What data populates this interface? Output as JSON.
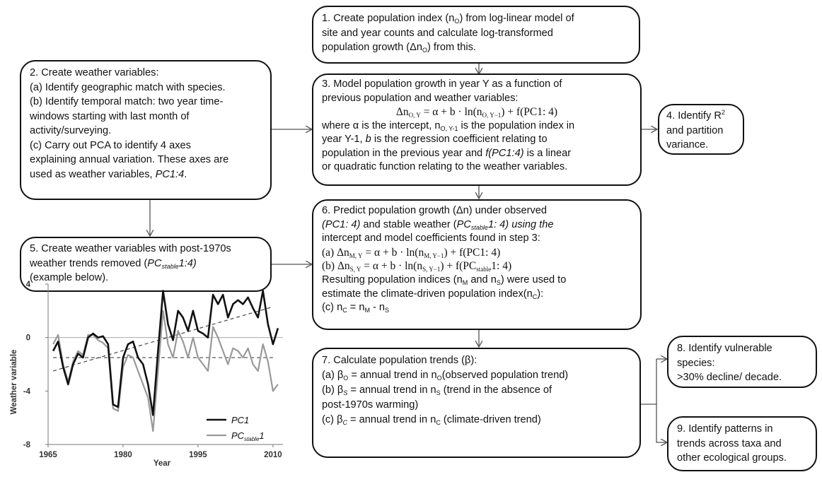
{
  "boxes": {
    "b1": {
      "lines": [
        "1. Create population index (n",
        "O",
        ") from log-linear model of",
        "site and year counts and calculate log-transformed",
        "population growth (Δn",
        "O",
        ") from this."
      ]
    },
    "b2": {
      "lines": [
        "2. Create weather variables:",
        "(a) Identify geographic match with species.",
        "(b) Identify temporal match: two year time-",
        "windows starting with last month of",
        "activity/surveying.",
        "(c) Carry out PCA to identify 4 axes",
        "explaining annual variation. These axes are",
        "used as weather variables, ",
        "PC1:4",
        "."
      ]
    },
    "b3": {
      "line1": "3. Model population growth in year Y as a function of",
      "line2": "previous population and weather variables:",
      "eq": "Δn",
      "eq_sub": "O, Y",
      "eq_mid": " = α + b · ln(n",
      "eq_sub2": "O, Y−1",
      "eq_end": ") + f(PC1: 4)",
      "line3a": "where α is the intercept, n",
      "line3sub": "O, Y-1",
      "line3b": " is the  population index in",
      "line4a": "year Y-1, ",
      "line4b": "b",
      "line4c": " is the  regression coefficient relating to",
      "line5a": "population in the previous year and ",
      "line5b": "f(PC1:4)",
      "line5c": " is a linear",
      "line6": "or quadratic function relating to the weather variables."
    },
    "b4": {
      "line1": "4. Identify R",
      "sup": "2",
      "line2": "and partition",
      "line3": "variance."
    },
    "b5": {
      "line1": "5. Create weather variables with post-1970s",
      "line2a": "weather trends removed (",
      "line2b": "PC",
      "line2sub": "stable",
      "line2c": "1:4)",
      "line3": "(example below)."
    },
    "b6": {
      "line1": "6. Predict population growth (Δn) under observed",
      "line2a": "(PC1: 4)",
      "line2b": " and stable weather (",
      "line2c": "PC",
      "line2sub": "stable",
      "line2d": "1: 4) using the",
      "line3": "intercept and model coefficients found in step 3:",
      "eqa_pre": "(a)  Δn",
      "eqa_sub": "M, Y",
      "eqa_mid": " =  α + b · ln(n",
      "eqa_sub2": "M, Y−1",
      "eqa_end": ") + f(PC1: 4)",
      "eqb_pre": "(b)  Δn",
      "eqb_sub": "S, Y",
      "eqb_mid": " =  α + b · ln(n",
      "eqb_sub2": "S, Y−1",
      "eqb_end1": ") + f(PC",
      "eqb_end_sub": "stable",
      "eqb_end2": "1: 4)",
      "line4a": "Resulting population indices (n",
      "line4sub1": "M",
      "line4b": " and n",
      "line4sub2": "S",
      "line4c": ") were used to",
      "line5": "estimate the climate-driven population index(n",
      "line5sub": "C",
      "line5end": "):",
      "line6a": "(c)  n",
      "line6sub1": "C",
      "line6b": " = n",
      "line6sub2": "M",
      "line6c": " - n",
      "line6sub3": "S"
    },
    "b7": {
      "line1": "7. Calculate population trends (β):",
      "l2a": "(a) β",
      "l2sub": "O",
      "l2b": " = annual trend in n",
      "l2sub2": "O",
      "l2c": "(observed population trend)",
      "l3a": "(b) β",
      "l3sub": "S",
      "l3b": " = annual trend in n",
      "l3sub2": "S",
      "l3c": " (trend in the absence of",
      "l4": "post-1970s warming)",
      "l5a": "(c) β",
      "l5sub": "C",
      "l5b": " = annual trend in n",
      "l5sub2": "C",
      "l5c": "  (climate-driven trend)"
    },
    "b8": {
      "line1": "8. Identify vulnerable",
      "line2": "species:",
      "line3": ">30% decline/ decade."
    },
    "b9": {
      "line1": "9. Identify patterns in",
      "line2": "trends across taxa and",
      "line3": "other ecological groups."
    }
  },
  "chart_data": {
    "type": "line",
    "xlabel": "Year",
    "ylabel": "Weather variable",
    "xlim": [
      1965,
      2012
    ],
    "ylim": [
      -8,
      4
    ],
    "xticks": [
      1965,
      1980,
      1995,
      2010
    ],
    "yticks": [
      4,
      0,
      -4,
      -8
    ],
    "x": [
      1966,
      1967,
      1968,
      1969,
      1970,
      1971,
      1972,
      1973,
      1974,
      1975,
      1976,
      1977,
      1978,
      1979,
      1980,
      1981,
      1982,
      1983,
      1984,
      1985,
      1986,
      1987,
      1988,
      1989,
      1990,
      1991,
      1992,
      1993,
      1994,
      1995,
      1996,
      1997,
      1998,
      1999,
      2000,
      2001,
      2002,
      2003,
      2004,
      2005,
      2006,
      2007,
      2008,
      2009,
      2010,
      2011
    ],
    "series": [
      {
        "name": "PC1",
        "color": "#111111",
        "values": [
          -1.0,
          -0.3,
          -2.2,
          -3.5,
          -2.0,
          -1.2,
          -1.5,
          0.0,
          0.3,
          0.0,
          0.1,
          -0.5,
          -5.0,
          -5.2,
          -1.5,
          -0.5,
          -0.3,
          -1.5,
          -2.0,
          -3.5,
          -5.8,
          -1.0,
          3.5,
          1.0,
          -0.2,
          2.0,
          1.5,
          0.5,
          2.0,
          0.5,
          0.3,
          0.0,
          3.2,
          2.5,
          3.2,
          1.5,
          2.5,
          2.8,
          2.5,
          3.0,
          2.2,
          1.5,
          3.5,
          1.0,
          -0.5,
          0.7
        ]
      },
      {
        "name": "PC",
        "name_sub": "stable",
        "name_end": "1",
        "color": "#999999",
        "values": [
          -0.5,
          0.2,
          -2.0,
          -3.3,
          -1.8,
          -1.0,
          -1.3,
          0.2,
          0.2,
          -0.2,
          -0.4,
          -0.8,
          -5.3,
          -5.5,
          -2.2,
          -1.3,
          -1.5,
          -2.5,
          -3.5,
          -4.5,
          -7.0,
          -2.5,
          2.0,
          -0.5,
          -1.5,
          0.5,
          -0.3,
          -1.5,
          0.0,
          -1.5,
          -2.0,
          -2.5,
          0.8,
          0.0,
          -1.0,
          -2.0,
          -0.8,
          -1.0,
          -1.5,
          -0.8,
          -2.0,
          -2.5,
          -0.5,
          -1.8,
          -4.0,
          -3.5
        ]
      }
    ],
    "trendlines": [
      {
        "from": [
          1966,
          -2.5
        ],
        "to": [
          2010,
          2.3
        ]
      },
      {
        "from": [
          1966,
          -1.5
        ],
        "to": [
          2010,
          -1.5
        ]
      }
    ],
    "zero_line": true,
    "legend": "bottom-right"
  }
}
